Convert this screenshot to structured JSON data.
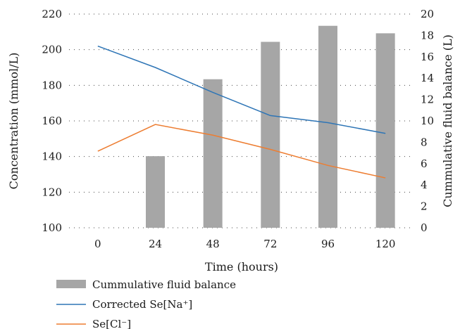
{
  "chart_data": {
    "type": "bar",
    "categories": [
      "0",
      "24",
      "48",
      "72",
      "96",
      "120"
    ],
    "xlabel": "Time (hours)",
    "ylabel_left": "Concentration (mmol/L)",
    "ylabel_right": "Cummulative fluid balance (L)",
    "ylim_left": [
      100,
      220
    ],
    "yticks_left": [
      100,
      120,
      140,
      160,
      180,
      200,
      220
    ],
    "ylim_right": [
      0,
      20
    ],
    "yticks_right": [
      0,
      2,
      4,
      6,
      8,
      10,
      12,
      14,
      16,
      18,
      20
    ],
    "grid": "horizontal dotted",
    "legend_position": "bottom",
    "series": [
      {
        "name": "Cummulative fluid balance",
        "type": "bar",
        "axis": "right",
        "color": "#a6a6a6",
        "values": [
          null,
          6.7,
          13.9,
          17.4,
          18.9,
          18.2
        ]
      },
      {
        "name": "Corrected Se[Na⁺]",
        "type": "line",
        "axis": "left",
        "color": "#2e75b6",
        "values": [
          202,
          190,
          176,
          163,
          159,
          153
        ]
      },
      {
        "name": "Se[Cl⁻]",
        "type": "line",
        "axis": "left",
        "color": "#ed7d31",
        "values": [
          143,
          158,
          152,
          144,
          135,
          128
        ]
      }
    ]
  }
}
